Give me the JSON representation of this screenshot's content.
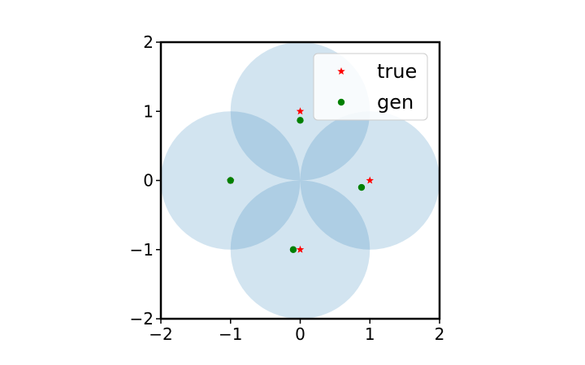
{
  "chart_data": {
    "type": "scatter",
    "title": "",
    "xlabel": "",
    "ylabel": "",
    "xlim": [
      -2,
      2
    ],
    "ylim": [
      -2,
      2
    ],
    "xticks": [
      "−2",
      "−1",
      "0",
      "1",
      "2"
    ],
    "yticks": [
      "−2",
      "−1",
      "0",
      "1",
      "2"
    ],
    "x_tick_values": [
      -2,
      -1,
      0,
      1,
      2
    ],
    "y_tick_values": [
      -2,
      -1,
      0,
      1,
      2
    ],
    "grid": false,
    "legend_position": "top-right",
    "regions": {
      "shape": "circle",
      "radius": 1,
      "color": "#1f77b4",
      "opacity": 0.2,
      "centers": [
        [
          0,
          1
        ],
        [
          1,
          0
        ],
        [
          0,
          -1
        ],
        [
          -1,
          0
        ]
      ]
    },
    "series": [
      {
        "name": "true",
        "marker": "star",
        "color": "#ff0000",
        "points": [
          [
            0,
            1
          ],
          [
            1,
            0
          ],
          [
            0,
            -1
          ],
          [
            -1,
            0
          ]
        ]
      },
      {
        "name": "gen",
        "marker": "circle",
        "color": "#008000",
        "points": [
          [
            0.0,
            0.87
          ],
          [
            0.88,
            -0.1
          ],
          [
            -0.1,
            -1.0
          ],
          [
            -1.0,
            0.0
          ]
        ]
      }
    ]
  }
}
